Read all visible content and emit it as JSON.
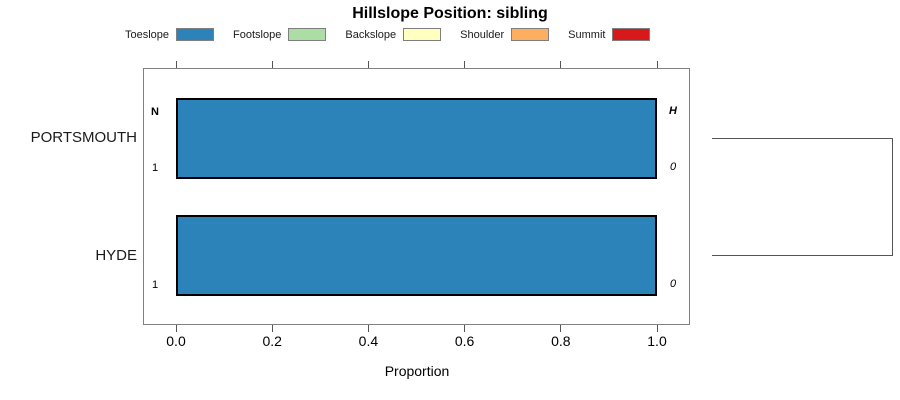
{
  "title": "Hillslope Position: sibling",
  "colors": {
    "bar_border": "#000000",
    "box_border": "#808080",
    "tick": "#555555",
    "dendrogram": "#555555"
  },
  "legend": {
    "items": [
      {
        "label": "Toeslope",
        "color": "#2B83BA"
      },
      {
        "label": "Footslope",
        "color": "#ABDDA4"
      },
      {
        "label": "Backslope",
        "color": "#FFFFBF"
      },
      {
        "label": "Shoulder",
        "color": "#FDAE61"
      },
      {
        "label": "Summit",
        "color": "#D7191C"
      }
    ]
  },
  "chart_data": {
    "type": "bar",
    "orientation": "horizontal",
    "title": "Hillslope Position: sibling",
    "xlabel": "Proportion",
    "xlim": [
      0,
      1
    ],
    "grid": false,
    "legend_position": "top",
    "xticks": [
      {
        "value": 0.0,
        "label": "0.0"
      },
      {
        "value": 0.2,
        "label": "0.2"
      },
      {
        "value": 0.4,
        "label": "0.4"
      },
      {
        "value": 0.6,
        "label": "0.6"
      },
      {
        "value": 0.8,
        "label": "0.8"
      },
      {
        "value": 1.0,
        "label": "1.0"
      }
    ],
    "categories": [
      "PORTSMOUTH",
      "HYDE"
    ],
    "series": [
      {
        "name": "Toeslope",
        "values": [
          1.0,
          1.0
        ]
      },
      {
        "name": "Footslope",
        "values": [
          0,
          0
        ]
      },
      {
        "name": "Backslope",
        "values": [
          0,
          0
        ]
      },
      {
        "name": "Shoulder",
        "values": [
          0,
          0
        ]
      },
      {
        "name": "Summit",
        "values": [
          0,
          0
        ]
      }
    ],
    "value_labels": {
      "left_header": "N",
      "right_header": "H",
      "rows": [
        {
          "left": "1",
          "right": "0"
        },
        {
          "left": "1",
          "right": "0"
        }
      ]
    },
    "dendrogram": {
      "connects": [
        "PORTSMOUTH",
        "HYDE"
      ]
    }
  }
}
